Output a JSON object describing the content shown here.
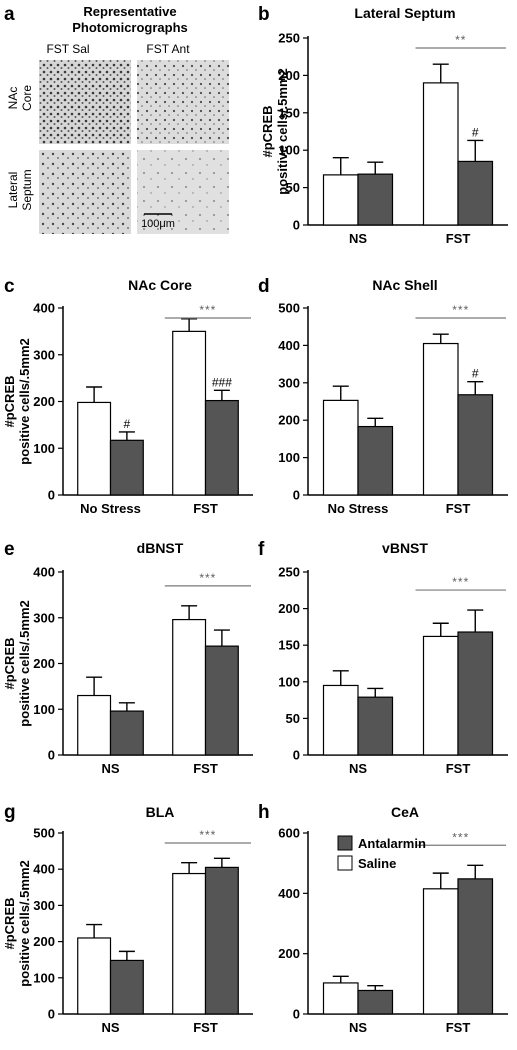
{
  "colors": {
    "saline": "#ffffff",
    "antalarmin": "#555555",
    "significance": "#7a7a7a"
  },
  "micrographs": {
    "panel_label": "a",
    "title_line1": "Representative",
    "title_line2": "Photomicrographs",
    "col1": "FST Sal",
    "col2": "FST Ant",
    "row1_line1": "NAc",
    "row1_line2": "Core",
    "row2_line1": "Lateral",
    "row2_line2": "Septum",
    "scale": "100μm"
  },
  "legend": {
    "items": [
      "Antalarmin",
      "Saline"
    ]
  },
  "chart_data": [
    {
      "id": "b",
      "type": "bar",
      "title": "Lateral Septum",
      "ylabel": [
        "#pCREB",
        "positive cells/.5mm2"
      ],
      "ylim": [
        0,
        250
      ],
      "yticks": [
        0,
        50,
        100,
        150,
        200,
        250
      ],
      "categories": [
        "NS",
        "FST"
      ],
      "series": [
        {
          "name": "Saline",
          "values": [
            67,
            190
          ],
          "errors": [
            23,
            25
          ]
        },
        {
          "name": "Antalarmin",
          "values": [
            68,
            85
          ],
          "errors": [
            16,
            28
          ]
        }
      ],
      "significance": "**",
      "annotations": [
        "",
        "#"
      ]
    },
    {
      "id": "c",
      "type": "bar",
      "title": "NAc Core",
      "ylabel": [
        "#pCREB",
        "positive cells/.5mm2"
      ],
      "ylim": [
        0,
        400
      ],
      "yticks": [
        0,
        100,
        200,
        300,
        400
      ],
      "categories": [
        "No Stress",
        "FST"
      ],
      "series": [
        {
          "name": "Saline",
          "values": [
            198,
            350
          ],
          "errors": [
            33,
            27
          ]
        },
        {
          "name": "Antalarmin",
          "values": [
            117,
            202
          ],
          "errors": [
            18,
            22
          ]
        }
      ],
      "significance": "***",
      "annotations": [
        "#",
        "###"
      ]
    },
    {
      "id": "d",
      "type": "bar",
      "title": "NAc Shell",
      "ylabel": [],
      "ylim": [
        0,
        500
      ],
      "yticks": [
        0,
        100,
        200,
        300,
        400,
        500
      ],
      "categories": [
        "No Stress",
        "FST"
      ],
      "series": [
        {
          "name": "Saline",
          "values": [
            253,
            405
          ],
          "errors": [
            38,
            25
          ]
        },
        {
          "name": "Antalarmin",
          "values": [
            183,
            268
          ],
          "errors": [
            22,
            35
          ]
        }
      ],
      "significance": "***",
      "annotations": [
        "",
        "#"
      ]
    },
    {
      "id": "e",
      "type": "bar",
      "title": "dBNST",
      "ylabel": [
        "#pCREB",
        "positive cells/.5mm2"
      ],
      "ylim": [
        0,
        400
      ],
      "yticks": [
        0,
        100,
        200,
        300,
        400
      ],
      "categories": [
        "NS",
        "FST"
      ],
      "series": [
        {
          "name": "Saline",
          "values": [
            130,
            296
          ],
          "errors": [
            40,
            30
          ]
        },
        {
          "name": "Antalarmin",
          "values": [
            96,
            238
          ],
          "errors": [
            18,
            35
          ]
        }
      ],
      "significance": "***",
      "annotations": [
        "",
        ""
      ]
    },
    {
      "id": "f",
      "type": "bar",
      "title": "vBNST",
      "ylabel": [],
      "ylim": [
        0,
        250
      ],
      "yticks": [
        0,
        50,
        100,
        150,
        200,
        250
      ],
      "categories": [
        "NS",
        "FST"
      ],
      "series": [
        {
          "name": "Saline",
          "values": [
            95,
            162
          ],
          "errors": [
            20,
            18
          ]
        },
        {
          "name": "Antalarmin",
          "values": [
            79,
            168
          ],
          "errors": [
            12,
            30
          ]
        }
      ],
      "significance": "***",
      "annotations": [
        "",
        ""
      ]
    },
    {
      "id": "g",
      "type": "bar",
      "title": "BLA",
      "ylabel": [
        "#pCREB",
        "positive cells/.5mm2"
      ],
      "ylim": [
        0,
        500
      ],
      "yticks": [
        0,
        100,
        200,
        300,
        400,
        500
      ],
      "categories": [
        "NS",
        "FST"
      ],
      "series": [
        {
          "name": "Saline",
          "values": [
            210,
            388
          ],
          "errors": [
            37,
            30
          ]
        },
        {
          "name": "Antalarmin",
          "values": [
            148,
            405
          ],
          "errors": [
            25,
            25
          ]
        }
      ],
      "significance": "***",
      "annotations": [
        "",
        ""
      ]
    },
    {
      "id": "h",
      "type": "bar",
      "title": "CeA",
      "ylabel": [],
      "ylim": [
        0,
        600
      ],
      "yticks": [
        0,
        200,
        400,
        600
      ],
      "categories": [
        "NS",
        "FST"
      ],
      "series": [
        {
          "name": "Saline",
          "values": [
            103,
            415
          ],
          "errors": [
            22,
            52
          ]
        },
        {
          "name": "Antalarmin",
          "values": [
            78,
            448
          ],
          "errors": [
            16,
            45
          ]
        }
      ],
      "significance": "***",
      "annotations": [
        "",
        ""
      ]
    }
  ]
}
